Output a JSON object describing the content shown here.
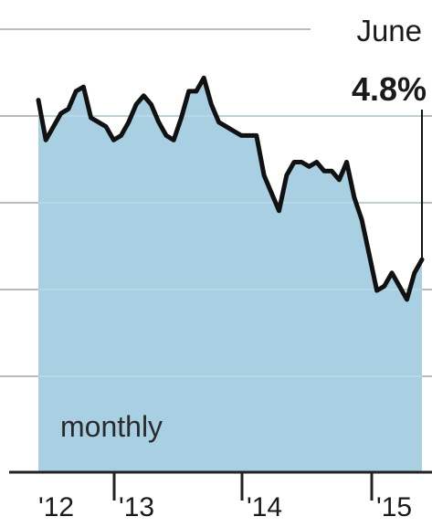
{
  "chart_data": {
    "type": "area",
    "title": "",
    "xlabel": "",
    "ylabel": "",
    "frequency_label": "monthly",
    "x_tick_labels": [
      "'12",
      "'13",
      "'14",
      "'15"
    ],
    "y_tick_labels": [],
    "ylim": [
      0,
      10
    ],
    "grid": true,
    "annotation": {
      "month": "June",
      "value_label": "4.8%"
    },
    "series": [
      {
        "values": [
          8.4,
          7.5,
          7.8,
          8.1,
          8.2,
          8.6,
          8.7,
          8.0,
          7.9,
          7.8,
          7.5,
          7.6,
          7.9,
          8.3,
          8.5,
          8.3,
          7.9,
          7.6,
          7.5,
          8.0,
          8.6,
          8.6,
          8.9,
          8.3,
          7.9,
          7.8,
          7.7,
          7.6,
          7.6,
          7.6,
          6.7,
          6.3,
          5.9,
          6.7,
          7.0,
          7.0,
          6.9,
          7.0,
          6.8,
          6.8,
          6.6,
          7.0,
          6.2,
          5.7,
          4.9,
          4.1,
          4.2,
          4.5,
          4.2,
          3.9,
          4.5,
          4.8
        ]
      }
    ],
    "colors": {
      "area": "#a9cfe3",
      "line": "#111111",
      "grid": "#bbbbbb",
      "axis": "#222222"
    }
  }
}
